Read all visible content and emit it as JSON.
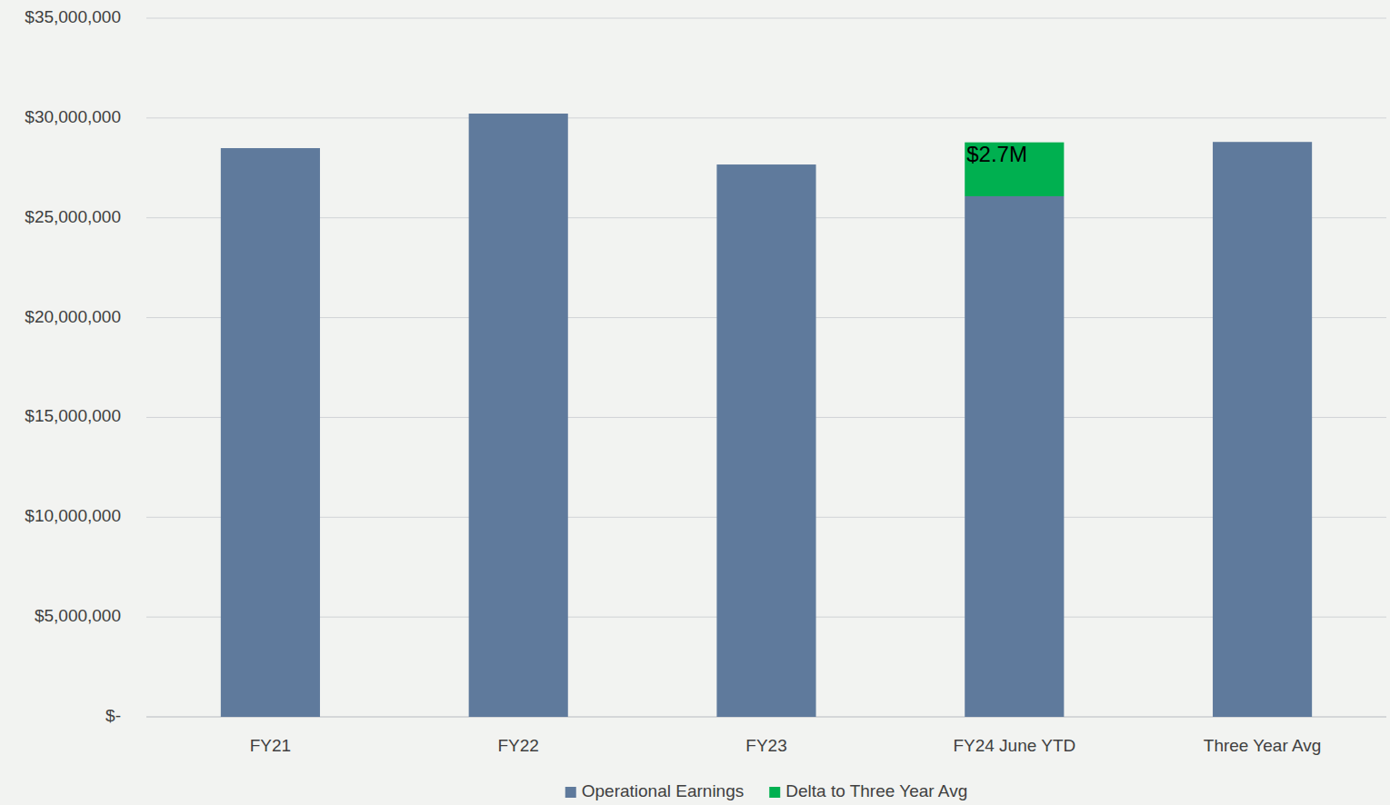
{
  "chart_data": {
    "type": "bar",
    "stacked": true,
    "categories": [
      "FY21",
      "FY22",
      "FY23",
      "FY24 June YTD",
      "Three Year Avg"
    ],
    "series": [
      {
        "name": "Operational Earnings",
        "color": "#5f7a9c",
        "values": [
          28490000,
          30220000,
          27670000,
          26080000,
          28800000
        ]
      },
      {
        "name": "Delta to Three Year Avg",
        "color": "#00b050",
        "values": [
          null,
          null,
          null,
          2700000,
          null
        ],
        "data_labels": true,
        "value_labels": [
          null,
          null,
          null,
          "$2.7M",
          null
        ]
      }
    ],
    "ylim": [
      0,
      35000000
    ],
    "yticks": [
      {
        "value": 0,
        "label": "$-"
      },
      {
        "value": 5000000,
        "label": "$5,000,000"
      },
      {
        "value": 10000000,
        "label": "$10,000,000"
      },
      {
        "value": 15000000,
        "label": "$15,000,000"
      },
      {
        "value": 20000000,
        "label": "$20,000,000"
      },
      {
        "value": 25000000,
        "label": "$25,000,000"
      },
      {
        "value": 30000000,
        "label": "$30,000,000"
      },
      {
        "value": 35000000,
        "label": "$35,000,000"
      }
    ],
    "grid": true,
    "legend": "bottom"
  }
}
